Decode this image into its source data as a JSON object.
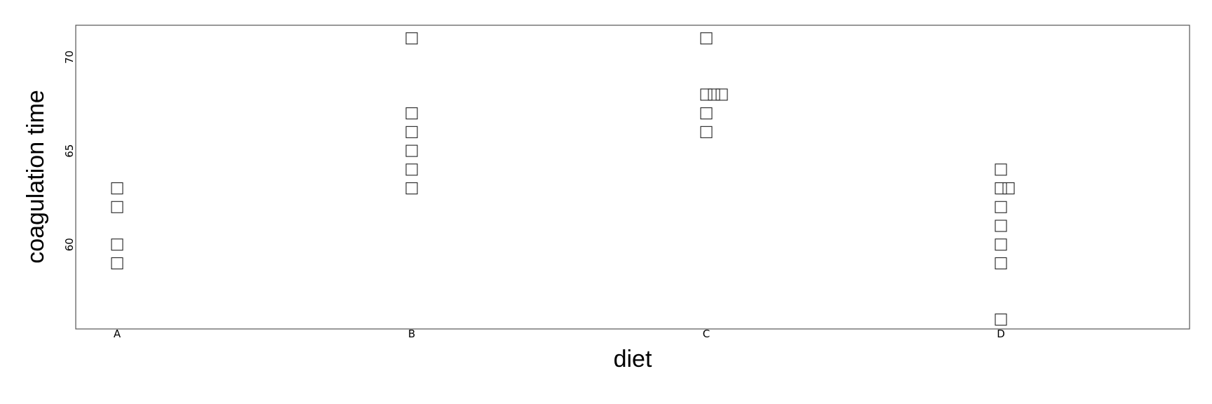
{
  "chart_data": {
    "type": "scatter",
    "title": "",
    "xlabel": "diet",
    "ylabel": "coagulation time",
    "categories": [
      "A",
      "B",
      "C",
      "D"
    ],
    "ylim": [
      55.5,
      71.7
    ],
    "yticks": [
      60,
      65,
      70
    ],
    "grid": false,
    "marker": "open-square",
    "jitter": "stacked-duplicates",
    "points": [
      {
        "x": "A",
        "y": 62
      },
      {
        "x": "A",
        "y": 60
      },
      {
        "x": "A",
        "y": 63
      },
      {
        "x": "A",
        "y": 59
      },
      {
        "x": "B",
        "y": 63
      },
      {
        "x": "B",
        "y": 67
      },
      {
        "x": "B",
        "y": 71
      },
      {
        "x": "B",
        "y": 64
      },
      {
        "x": "B",
        "y": 65
      },
      {
        "x": "B",
        "y": 66
      },
      {
        "x": "C",
        "y": 68
      },
      {
        "x": "C",
        "y": 66
      },
      {
        "x": "C",
        "y": 71
      },
      {
        "x": "C",
        "y": 67
      },
      {
        "x": "C",
        "y": 68
      },
      {
        "x": "C",
        "y": 68
      },
      {
        "x": "D",
        "y": 56
      },
      {
        "x": "D",
        "y": 62
      },
      {
        "x": "D",
        "y": 60
      },
      {
        "x": "D",
        "y": 61
      },
      {
        "x": "D",
        "y": 63
      },
      {
        "x": "D",
        "y": 64
      },
      {
        "x": "D",
        "y": 63
      },
      {
        "x": "D",
        "y": 59
      }
    ]
  }
}
